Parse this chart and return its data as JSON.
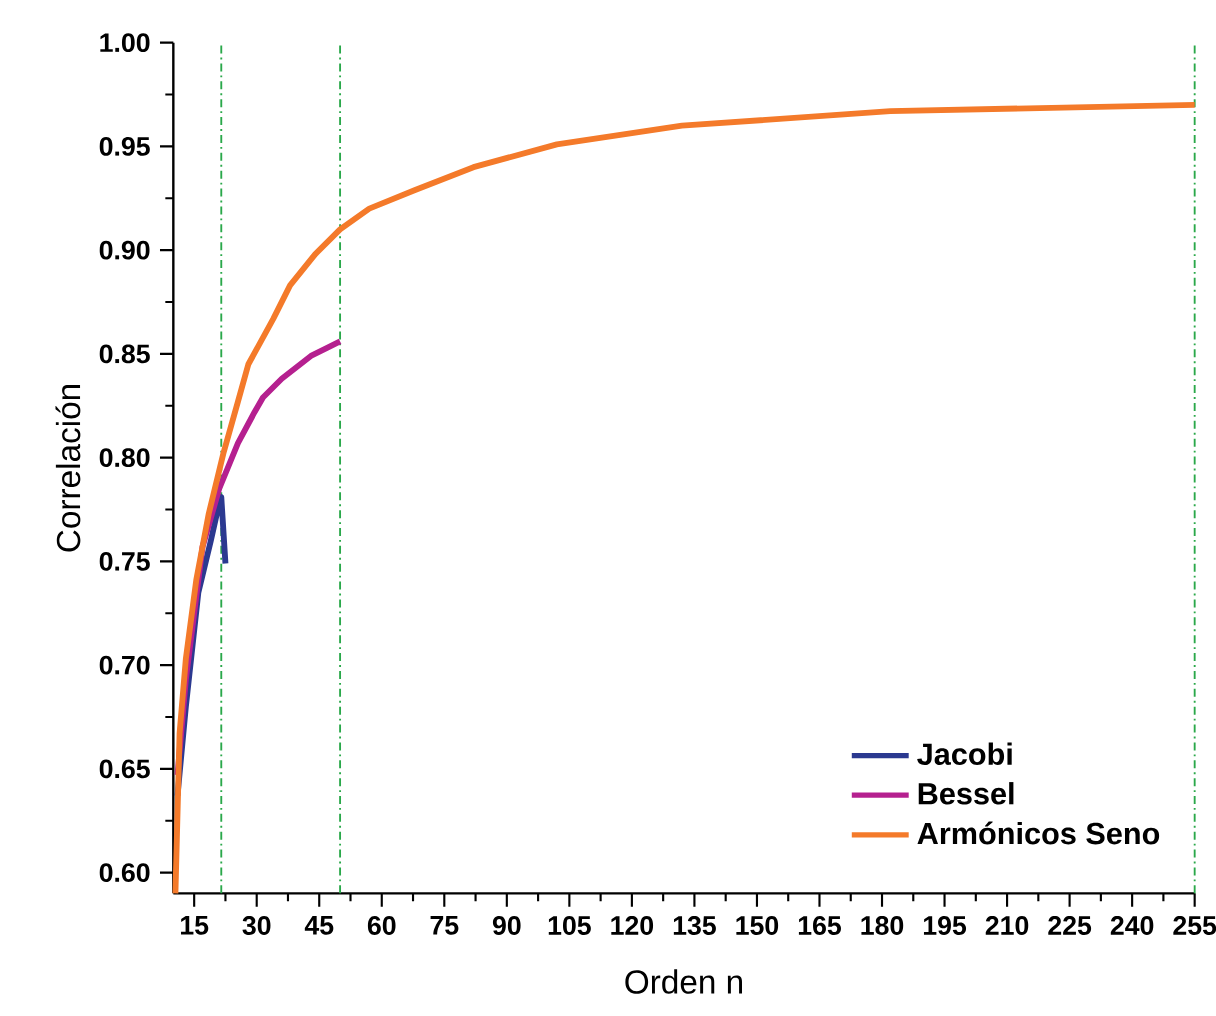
{
  "chart_data": {
    "type": "line",
    "xlabel": "Orden n",
    "ylabel": "Correlación",
    "xlim": [
      10,
      255
    ],
    "ylim": [
      0.59,
      1.0
    ],
    "xticks": [
      15,
      30,
      45,
      60,
      75,
      90,
      105,
      120,
      135,
      150,
      165,
      180,
      195,
      210,
      225,
      240,
      255
    ],
    "yticks": [
      {
        "value": 0.6,
        "label": "0.60"
      },
      {
        "value": 0.65,
        "label": "0.65"
      },
      {
        "value": 0.7,
        "label": "0.70"
      },
      {
        "value": 0.75,
        "label": "0.75"
      },
      {
        "value": 0.8,
        "label": "0.80"
      },
      {
        "value": 0.85,
        "label": "0.85"
      },
      {
        "value": 0.9,
        "label": "0.90"
      },
      {
        "value": 0.95,
        "label": "0.95"
      },
      {
        "value": 1.0,
        "label": "1.00"
      }
    ],
    "grid": false,
    "legend": "bottom right",
    "marker": "none",
    "line_style": "solid",
    "series": [
      {
        "name": "Jacobi",
        "color": "#2b3990",
        "x": [
          11,
          13,
          16,
          19,
          21,
          21.5,
          22.5
        ],
        "values": [
          0.637,
          0.68,
          0.735,
          0.76,
          0.778,
          0.781,
          0.749
        ]
      },
      {
        "name": "Bessel",
        "color": "#b5208f",
        "x": [
          11,
          13,
          17,
          21,
          25.5,
          29.5,
          31.5,
          36,
          43,
          47,
          50
        ],
        "values": [
          0.647,
          0.693,
          0.757,
          0.785,
          0.807,
          0.822,
          0.829,
          0.838,
          0.849,
          0.853,
          0.856
        ]
      },
      {
        "name": "Armónicos Seno",
        "color": "#f47a2a",
        "x": [
          10.5,
          11.5,
          13,
          15.5,
          18.5,
          22,
          25.5,
          28,
          34,
          38,
          44,
          50,
          57,
          68,
          82,
          102,
          132,
          182,
          255
        ],
        "values": [
          0.59,
          0.667,
          0.703,
          0.741,
          0.773,
          0.802,
          0.827,
          0.845,
          0.867,
          0.883,
          0.898,
          0.91,
          0.92,
          0.929,
          0.94,
          0.951,
          0.96,
          0.967,
          0.97
        ]
      }
    ],
    "ref_lines": [
      {
        "axis": "x",
        "value": 21.5,
        "color": "#2aa84a"
      },
      {
        "axis": "x",
        "value": 50,
        "color": "#2aa84a"
      },
      {
        "axis": "x",
        "value": 255,
        "color": "#2aa84a"
      }
    ]
  }
}
